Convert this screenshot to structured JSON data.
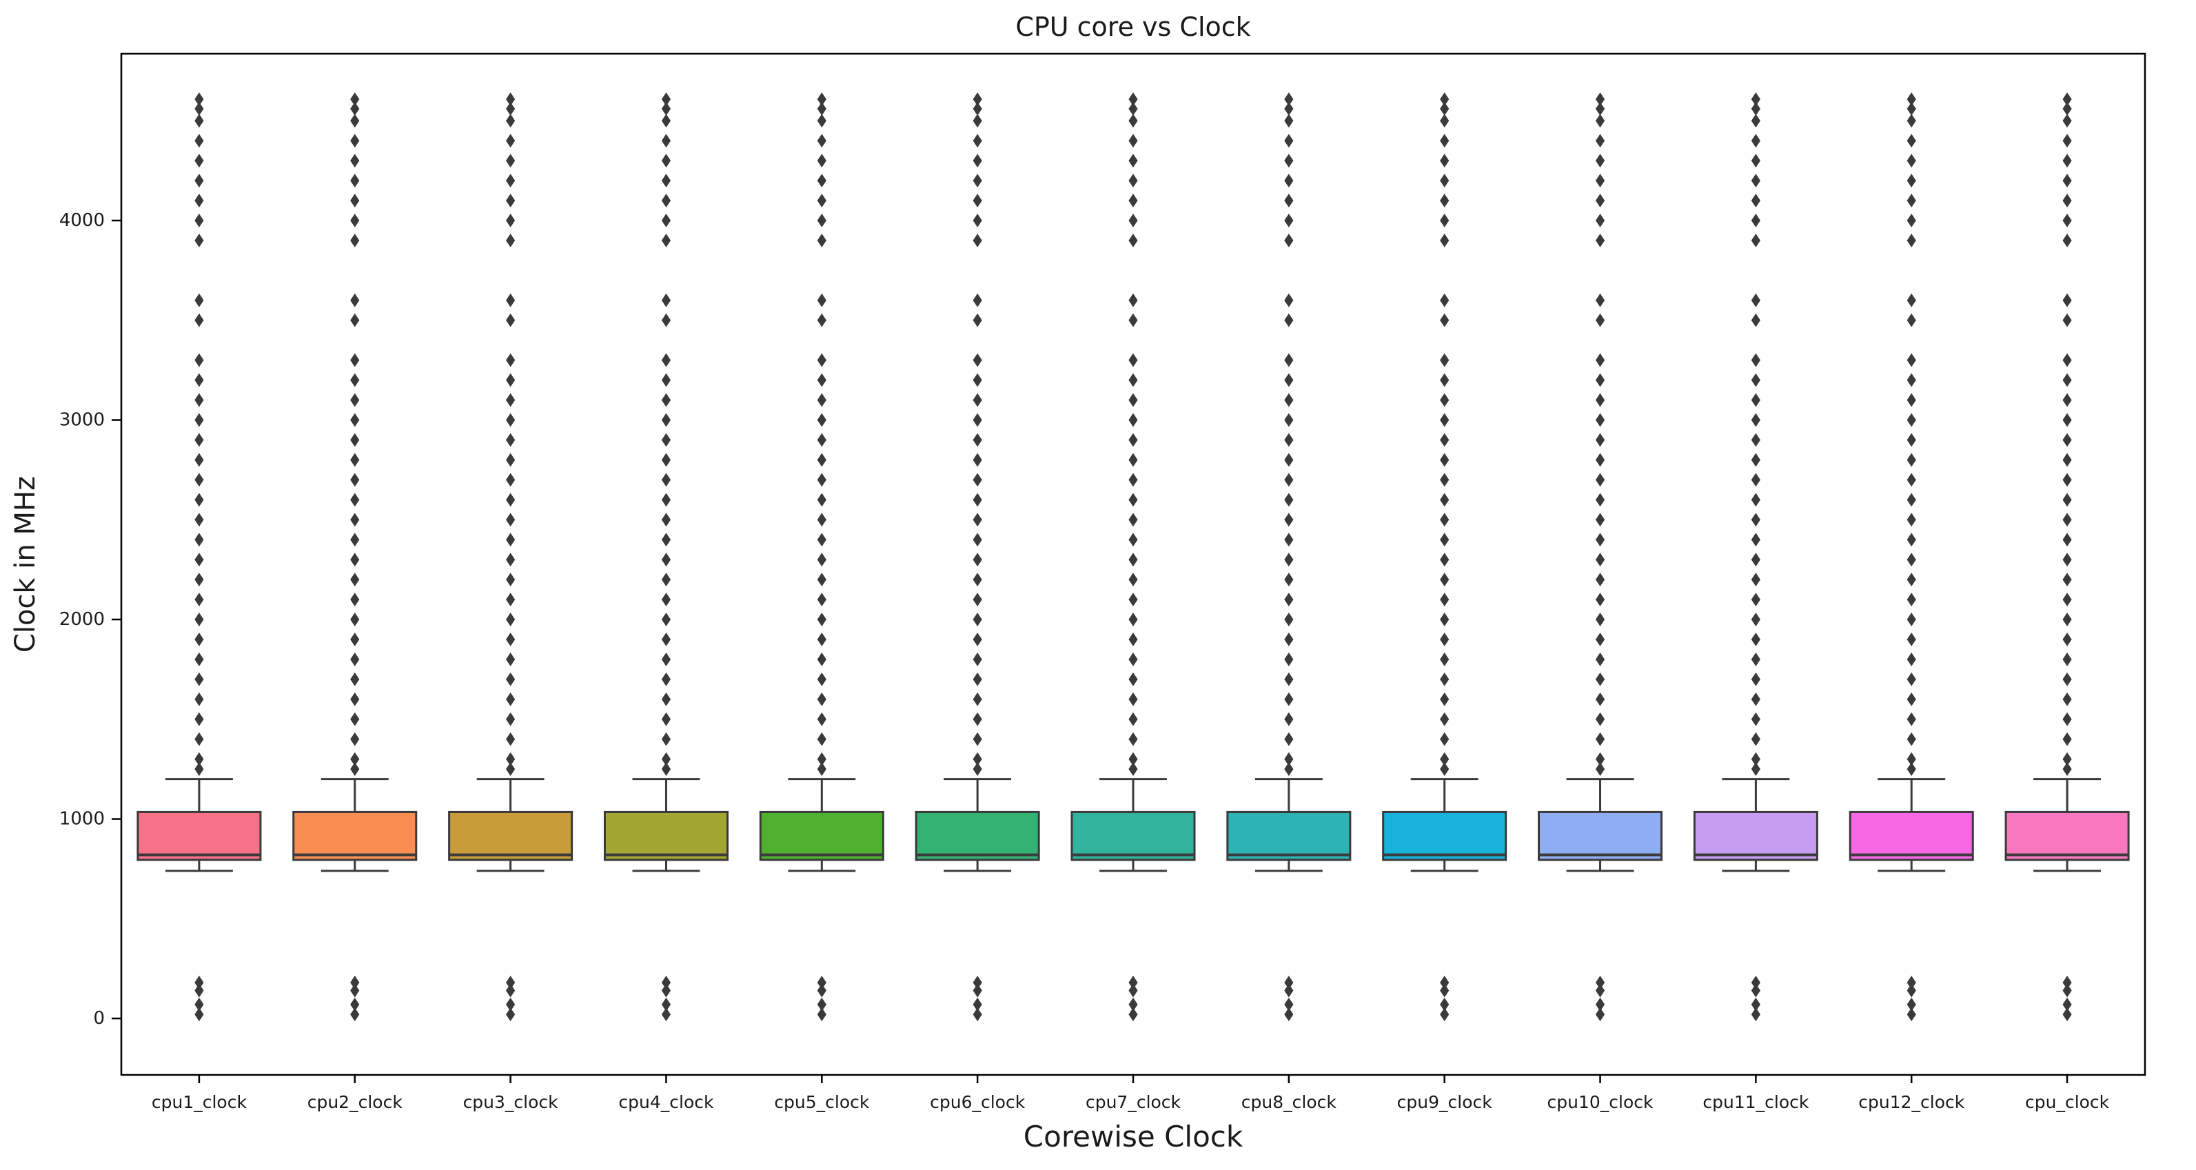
{
  "chart_data": {
    "type": "box",
    "title": "CPU core vs Clock",
    "xlabel": "Corewise Clock",
    "ylabel": "Clock in MHz",
    "ylim": [
      -283,
      4836
    ],
    "yticks": [
      0,
      1000,
      2000,
      3000,
      4000
    ],
    "grid": false,
    "legend": "none",
    "categories": [
      "cpu1_clock",
      "cpu2_clock",
      "cpu3_clock",
      "cpu4_clock",
      "cpu5_clock",
      "cpu6_clock",
      "cpu7_clock",
      "cpu8_clock",
      "cpu9_clock",
      "cpu10_clock",
      "cpu11_clock",
      "cpu12_clock",
      "cpu_clock"
    ],
    "palette": [
      "#f77189",
      "#f98e52",
      "#c99c3a",
      "#a3a633",
      "#50b131",
      "#33b273",
      "#31b39e",
      "#2db2b5",
      "#18b2db",
      "#8fadf2",
      "#c79df2",
      "#f768e4",
      "#f877bf"
    ],
    "box_stats_common": {
      "whisker_low": 740,
      "q1": 795,
      "median": 820,
      "q3": 1035,
      "whisker_high": 1200
    },
    "outliers_high": [
      1250,
      1300,
      1400,
      1500,
      1600,
      1700,
      1800,
      1900,
      2000,
      2100,
      2200,
      2300,
      2400,
      2500,
      2600,
      2700,
      2800,
      2900,
      3000,
      3100,
      3200,
      3300,
      3500,
      3600,
      3900,
      4000,
      4100,
      4200,
      4300,
      4400,
      4500,
      4560,
      4608
    ],
    "outliers_low": [
      180,
      140,
      70,
      20
    ],
    "edge_color": "#3a3a3a",
    "spine_color": "#000000",
    "background": "#ffffff"
  }
}
